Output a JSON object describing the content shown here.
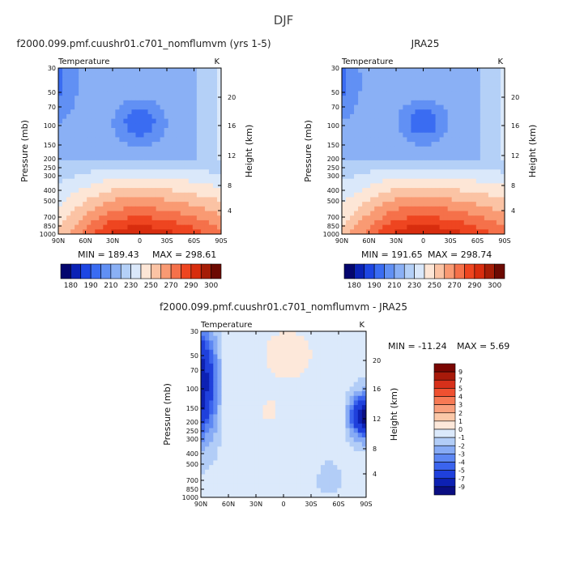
{
  "page_title": "DJF",
  "palettes": {
    "temp": [
      "#04066e",
      "#0a22b5",
      "#1d46e3",
      "#3a6cf2",
      "#6190f4",
      "#8ab0f5",
      "#b4d0f7",
      "#dae8fa",
      "#fde6d6",
      "#fbc3a4",
      "#f99a73",
      "#f5714a",
      "#ee4520",
      "#d82d0e",
      "#a51d06",
      "#6c0a02"
    ],
    "diff": [
      "#0a0e82",
      "#0d21b3",
      "#1f40dc",
      "#3b64ee",
      "#5d87f3",
      "#87abf5",
      "#b2cdf7",
      "#dbe9fb",
      "#fde8da",
      "#fbc8a8",
      "#f9a07d",
      "#f77a55",
      "#ef5030",
      "#d7301a",
      "#a81a0a",
      "#7a0602"
    ]
  },
  "chart_data": [
    {
      "id": "model",
      "type": "contour",
      "title": "f2000.099.pmf.cuushr01.c701_nomflumvm (yrs 1-5)",
      "left_label": "Temperature",
      "right_label": "K",
      "ylabel": "Pressure (mb)",
      "y2label": "Height (km)",
      "x_ticks": [
        "90N",
        "60N",
        "30N",
        "0",
        "30S",
        "60S",
        "90S"
      ],
      "y_ticks": [
        "30",
        "50",
        "70",
        "100",
        "150",
        "200",
        "250",
        "300",
        "400",
        "500",
        "700",
        "850",
        "1000"
      ],
      "y2_ticks": [
        "20",
        "16",
        "12",
        "8",
        "4"
      ],
      "min_label": "MIN = 189.43",
      "max_label": "MAX = 298.61",
      "min": 189.43,
      "max": 298.61,
      "colorbar_labels": [
        "180",
        "190",
        "210",
        "230",
        "250",
        "270",
        "290",
        "300"
      ]
    },
    {
      "id": "obs",
      "type": "contour",
      "title": "JRA25",
      "left_label": "Temperature",
      "right_label": "K",
      "ylabel": "Pressure (mb)",
      "y2label": "Height (km)",
      "x_ticks": [
        "90N",
        "60N",
        "30N",
        "0",
        "30S",
        "60S",
        "90S"
      ],
      "y_ticks": [
        "30",
        "50",
        "70",
        "100",
        "150",
        "200",
        "250",
        "300",
        "400",
        "500",
        "700",
        "850",
        "1000"
      ],
      "y2_ticks": [
        "20",
        "16",
        "12",
        "8",
        "4"
      ],
      "min_label": "MIN = 191.65",
      "max_label": "MAX = 298.74",
      "min": 191.65,
      "max": 298.74,
      "colorbar_labels": [
        "180",
        "190",
        "210",
        "230",
        "250",
        "270",
        "290",
        "300"
      ]
    },
    {
      "id": "diff",
      "type": "contour",
      "title": "f2000.099.pmf.cuushr01.c701_nomflumvm - JRA25",
      "left_label": "Temperature",
      "right_label": "K",
      "ylabel": "Pressure (mb)",
      "y2label": "Height (km)",
      "x_ticks": [
        "90N",
        "60N",
        "30N",
        "0",
        "30S",
        "60S",
        "90S"
      ],
      "y_ticks": [
        "30",
        "50",
        "70",
        "100",
        "150",
        "200",
        "250",
        "300",
        "400",
        "500",
        "700",
        "850",
        "1000"
      ],
      "y2_ticks": [
        "20",
        "16",
        "12",
        "8",
        "4"
      ],
      "min_label": "MIN = -11.24",
      "max_label": "MAX = 5.69",
      "min": -11.24,
      "max": 5.69,
      "colorbar_labels": [
        "9",
        "7",
        "5",
        "4",
        "3",
        "2",
        "1",
        "0",
        "-1",
        "-2",
        "-3",
        "-4",
        "-5",
        "-7",
        "-9"
      ]
    }
  ]
}
